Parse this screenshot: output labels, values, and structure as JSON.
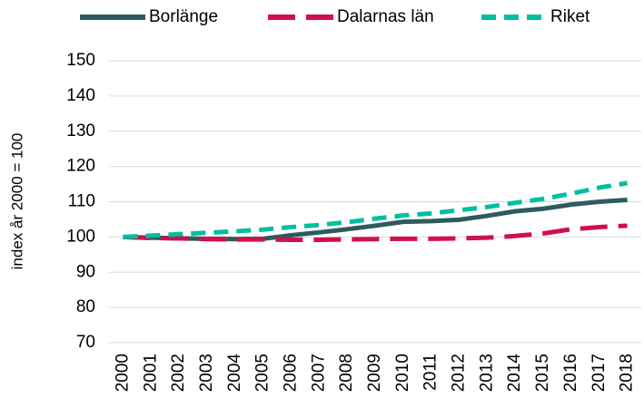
{
  "chart_data": {
    "type": "line",
    "y_label": "index år 2000 = 100",
    "categories": [
      "2000",
      "2001",
      "2002",
      "2003",
      "2004",
      "2005",
      "2006",
      "2007",
      "2008",
      "2009",
      "2010",
      "2011",
      "2012",
      "2013",
      "2014",
      "2015",
      "2016",
      "2017",
      "2018"
    ],
    "series": [
      {
        "name": "Borlänge",
        "color": "#2d5b5e",
        "dash": "solid",
        "values": [
          100,
          99.8,
          99.6,
          99.5,
          99.4,
          99.5,
          100.5,
          101.3,
          102.2,
          103.2,
          104.3,
          104.5,
          104.9,
          106,
          107.3,
          108,
          109.2,
          110,
          110.5
        ]
      },
      {
        "name": "Dalarnas län",
        "color": "#d0104c",
        "dash": "long-dash",
        "values": [
          100,
          99.7,
          99.6,
          99.4,
          99.3,
          99.3,
          99.2,
          99.2,
          99.3,
          99.4,
          99.5,
          99.5,
          99.6,
          99.8,
          100.3,
          101,
          102.2,
          102.8,
          103.2
        ]
      },
      {
        "name": "Riket",
        "color": "#00bfa0",
        "dash": "dash",
        "values": [
          100,
          100.4,
          100.8,
          101.2,
          101.6,
          102.1,
          102.8,
          103.4,
          104.2,
          105.2,
          106.1,
          106.7,
          107.6,
          108.5,
          109.7,
          110.8,
          112.3,
          114,
          115.3
        ]
      }
    ],
    "ylim": [
      70,
      150
    ],
    "yticks": [
      70,
      80,
      90,
      100,
      110,
      120,
      130,
      140,
      150
    ],
    "grid": true,
    "legend": "top"
  }
}
